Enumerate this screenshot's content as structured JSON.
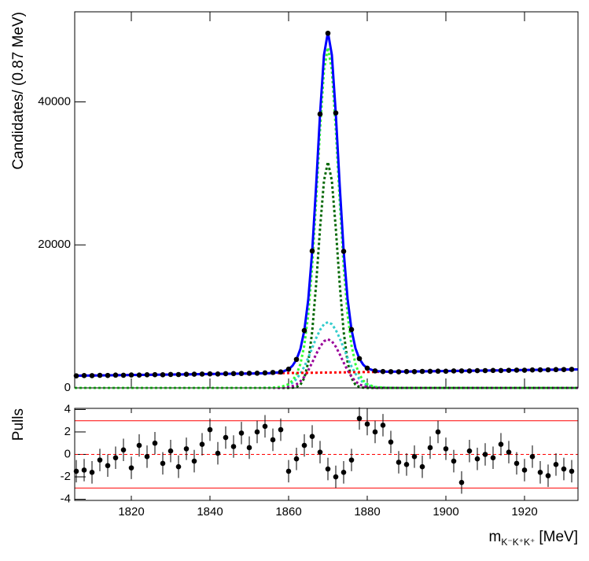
{
  "chart_data": [
    {
      "type": "fit",
      "y_label": "Candidates/ (0.87 MeV)",
      "xlim": [
        1805.6,
        1933.6
      ],
      "ylim": [
        0,
        52600
      ],
      "xticks": [
        1820,
        1840,
        1860,
        1880,
        1900,
        1920
      ],
      "yticks": [
        0,
        20000,
        40000
      ],
      "point_color": "#000000",
      "x": [
        1806,
        1808,
        1810,
        1812,
        1814,
        1816,
        1818,
        1820,
        1822,
        1824,
        1826,
        1828,
        1830,
        1832,
        1834,
        1836,
        1838,
        1840,
        1842,
        1844,
        1846,
        1848,
        1850,
        1852,
        1854,
        1856,
        1858,
        1860,
        1862,
        1864,
        1866,
        1868,
        1870,
        1872,
        1874,
        1876,
        1878,
        1880,
        1882,
        1884,
        1886,
        1888,
        1890,
        1892,
        1894,
        1896,
        1898,
        1900,
        1902,
        1904,
        1906,
        1908,
        1910,
        1912,
        1914,
        1916,
        1918,
        1920,
        1922,
        1924,
        1926,
        1928,
        1930,
        1932
      ],
      "values": [
        1690,
        1730,
        1715,
        1760,
        1745,
        1790,
        1770,
        1810,
        1795,
        1840,
        1850,
        1835,
        1880,
        1870,
        1905,
        1915,
        1930,
        1960,
        1950,
        1990,
        2000,
        2020,
        2040,
        2060,
        2100,
        2160,
        2230,
        2620,
        3990,
        8030,
        19150,
        38300,
        49600,
        38450,
        19100,
        8160,
        4100,
        2760,
        2380,
        2290,
        2270,
        2250,
        2290,
        2280,
        2310,
        2320,
        2340,
        2330,
        2370,
        2380,
        2370,
        2410,
        2420,
        2440,
        2430,
        2460,
        2480,
        2470,
        2510,
        2520,
        2530,
        2560,
        2570,
        2590
      ],
      "curve_x": [
        1805.6,
        1820,
        1835,
        1850,
        1855,
        1858,
        1860,
        1861,
        1862,
        1863,
        1864,
        1865,
        1866,
        1867,
        1868,
        1869,
        1870,
        1871,
        1872,
        1873,
        1874,
        1875,
        1876,
        1877,
        1878,
        1879,
        1880,
        1882,
        1885,
        1890,
        1905,
        1920,
        1933.6
      ],
      "curves": [
        {
          "color": "#006600",
          "style": "dashed",
          "values": [
            0,
            0,
            0,
            0,
            0,
            0,
            0,
            30,
            130,
            440,
            1390,
            3600,
            7870,
            14470,
            22340,
            28980,
            31600,
            28980,
            22340,
            14470,
            7870,
            3600,
            1390,
            440,
            130,
            30,
            0,
            0,
            0,
            0,
            0,
            0,
            0
          ]
        },
        {
          "color": "#33cccc",
          "style": "dashed",
          "values": [
            0,
            0,
            0,
            0,
            10,
            100,
            400,
            740,
            1240,
            1990,
            2990,
            4210,
            5580,
            6950,
            8110,
            8910,
            9200,
            8910,
            8110,
            6950,
            5580,
            4210,
            2990,
            1990,
            1240,
            740,
            400,
            100,
            10,
            0,
            0,
            0,
            0
          ]
        },
        {
          "color": "#990099",
          "style": "dashed",
          "values": [
            0,
            0,
            0,
            0,
            0,
            20,
            120,
            250,
            500,
            920,
            1560,
            2450,
            3540,
            4710,
            5770,
            6530,
            6800,
            6530,
            5770,
            4710,
            3540,
            2450,
            1560,
            920,
            500,
            250,
            120,
            20,
            0,
            0,
            0,
            0,
            0
          ]
        },
        {
          "color": "#33ff33",
          "style": "dashed",
          "values": [
            0,
            0,
            0,
            0,
            10,
            120,
            520,
            1020,
            1870,
            3350,
            5940,
            10260,
            16990,
            26130,
            36220,
            44420,
            47600,
            44420,
            36220,
            26130,
            16990,
            10260,
            5940,
            3350,
            1870,
            1020,
            520,
            120,
            10,
            0,
            0,
            0,
            0
          ]
        },
        {
          "color": "#ff0000",
          "style": "dashed",
          "values": [
            1704,
            1804,
            1907,
            2011,
            2045,
            2066,
            2080,
            2086,
            2093,
            2100,
            2107,
            2114,
            2121,
            2128,
            2135,
            2142,
            2149,
            2155,
            2162,
            2169,
            2176,
            2183,
            2190,
            2197,
            2204,
            2211,
            2218,
            2231,
            2252,
            2287,
            2390,
            2494,
            2587
          ]
        },
        {
          "color": "#0000ff",
          "style": "solid",
          "values": [
            1704,
            1804,
            1907,
            2011,
            2055,
            2186,
            2600,
            3106,
            3963,
            5450,
            8047,
            12374,
            19111,
            28258,
            38355,
            46562,
            49749,
            46575,
            38382,
            28299,
            19166,
            12443,
            8130,
            5547,
            4074,
            3231,
            2738,
            2351,
            2262,
            2287,
            2390,
            2494,
            2587
          ]
        }
      ]
    },
    {
      "type": "pulls",
      "y_label": "Pulls",
      "x_label": "m",
      "x_label_sub": "K⁻K⁺K⁺",
      "x_label_unit": "[MeV]",
      "xlim": [
        1805.6,
        1933.6
      ],
      "ylim": [
        -4.1,
        4.1
      ],
      "xticks": [
        1820,
        1840,
        1860,
        1880,
        1900,
        1920
      ],
      "yticks": [
        -4,
        -2,
        0,
        2,
        4
      ],
      "point_color": "#000000",
      "error": 1,
      "reference_lines": [
        {
          "value": 3,
          "style": "solid"
        },
        {
          "value": 0,
          "style": "dashed"
        },
        {
          "value": -3,
          "style": "solid"
        }
      ],
      "reference_color": "#ff0000",
      "x": [
        1806,
        1808,
        1810,
        1812,
        1814,
        1816,
        1818,
        1820,
        1822,
        1824,
        1826,
        1828,
        1830,
        1832,
        1834,
        1836,
        1838,
        1840,
        1842,
        1844,
        1846,
        1848,
        1850,
        1852,
        1854,
        1856,
        1858,
        1860,
        1862,
        1864,
        1866,
        1868,
        1870,
        1872,
        1874,
        1876,
        1878,
        1880,
        1882,
        1884,
        1886,
        1888,
        1890,
        1892,
        1894,
        1896,
        1898,
        1900,
        1902,
        1904,
        1906,
        1908,
        1910,
        1912,
        1914,
        1916,
        1918,
        1920,
        1922,
        1924,
        1926,
        1928,
        1930,
        1932
      ],
      "values": [
        -1.5,
        -1.4,
        -1.6,
        -0.5,
        -1.0,
        -0.3,
        0.4,
        -1.2,
        0.8,
        -0.2,
        1.0,
        -0.8,
        0.3,
        -1.1,
        0.5,
        -0.6,
        0.9,
        2.2,
        0.1,
        1.5,
        0.7,
        1.9,
        0.6,
        2.0,
        2.5,
        1.3,
        2.2,
        -1.5,
        -0.4,
        0.8,
        1.6,
        0.2,
        -1.3,
        -2.0,
        -1.6,
        -0.5,
        3.2,
        2.7,
        2.0,
        2.6,
        1.1,
        -0.7,
        -0.9,
        -0.2,
        -1.1,
        0.6,
        2.0,
        0.5,
        -0.6,
        -2.5,
        0.3,
        -0.4,
        0.0,
        -0.3,
        0.9,
        0.2,
        -0.8,
        -1.4,
        -0.2,
        -1.6,
        -1.9,
        -0.9,
        -1.3,
        -1.5
      ]
    }
  ]
}
